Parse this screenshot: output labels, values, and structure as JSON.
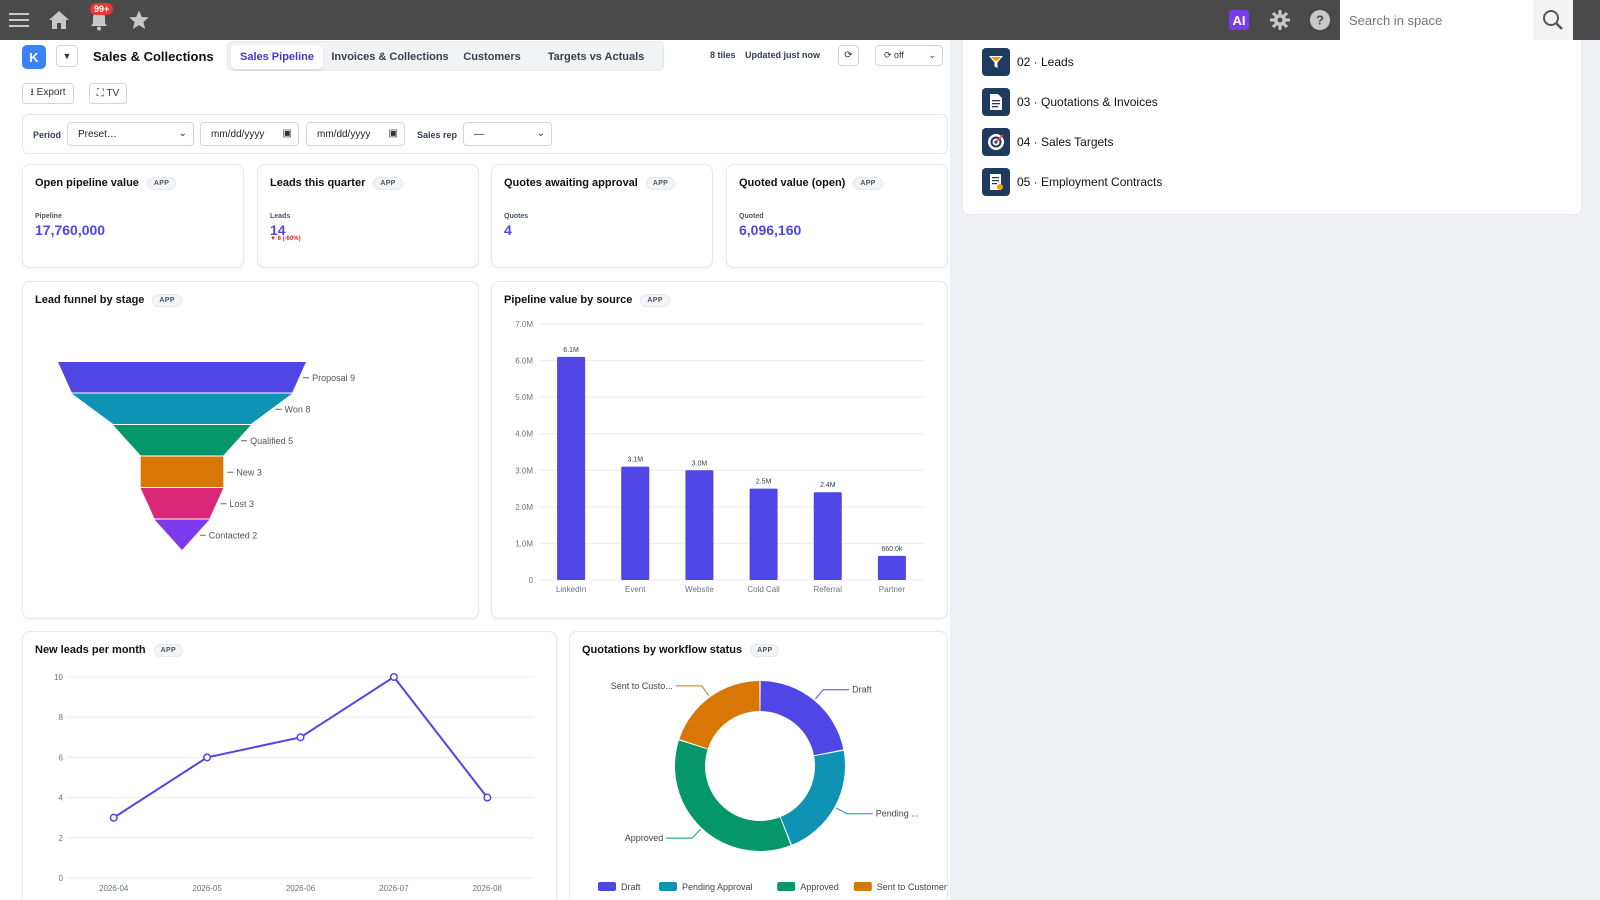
{
  "topbar": {
    "notification_count": "99+",
    "ai_label": "AI",
    "search_placeholder": "Search in space"
  },
  "dashboard": {
    "logo_letter": "K",
    "title": "Sales & Collections",
    "tabs": [
      {
        "label": "Sales Pipeline",
        "active": true
      },
      {
        "label": "Invoices & Collections",
        "active": false
      },
      {
        "label": "Customers",
        "active": false
      },
      {
        "label": "Targets vs Actuals",
        "active": false
      }
    ],
    "tiles_info": "8 tiles",
    "updated": "Updated just now",
    "refresh_glyph": "⟳",
    "auto_refresh": "⟳ off",
    "export_label": "⭳ Export",
    "tv_label": "⛶ TV"
  },
  "filters": {
    "period_label": "Period",
    "preset_value": "Preset…",
    "date_from": "mm/dd/yyyy",
    "date_to": "mm/dd/yyyy",
    "sales_rep_label": "Sales rep",
    "sales_rep_value": "—"
  },
  "app_tag": "APP",
  "kpis": [
    {
      "title": "Open pipeline value",
      "label": "Pipeline",
      "value": "17,760,000",
      "delta": ""
    },
    {
      "title": "Leads this quarter",
      "label": "Leads",
      "value": "14",
      "delta": "▼ 6 (-60%)"
    },
    {
      "title": "Quotes awaiting approval",
      "label": "Quotes",
      "value": "4",
      "delta": ""
    },
    {
      "title": "Quoted value (open)",
      "label": "Quoted",
      "value": "6,096,160",
      "delta": ""
    }
  ],
  "right_nav": [
    {
      "label": "02 · Leads",
      "icon": "funnel-icon"
    },
    {
      "label": "03 · Quotations & Invoices",
      "icon": "document-icon"
    },
    {
      "label": "04 · Sales Targets",
      "icon": "target-icon"
    },
    {
      "label": "05 · Employment Contracts",
      "icon": "contract-icon"
    }
  ],
  "colors": {
    "accent": "#4f46e5",
    "topbar": "#4a4a4a",
    "down": "#dc2626"
  },
  "chart_data": [
    {
      "type": "funnel",
      "title": "Lead funnel by stage",
      "categories": [
        "Proposal",
        "Won",
        "Qualified",
        "New",
        "Lost",
        "Contacted"
      ],
      "values": [
        9,
        8,
        5,
        3,
        3,
        2
      ],
      "colors": [
        "#4f46e5",
        "#0e93b5",
        "#059669",
        "#d97706",
        "#db2777",
        "#7c3aed"
      ]
    },
    {
      "type": "bar",
      "title": "Pipeline value by source",
      "categories": [
        "LinkedIn",
        "Event",
        "Website",
        "Cold Call",
        "Referral",
        "Partner"
      ],
      "values": [
        6100000,
        3100000,
        3000000,
        2500000,
        2400000,
        660000
      ],
      "value_labels": [
        "6.1M",
        "3.1M",
        "3.0M",
        "2.5M",
        "2.4M",
        "660.0k"
      ],
      "ylim": [
        0,
        7000000
      ],
      "yticks": [
        "0",
        "1.0M",
        "2.0M",
        "3.0M",
        "4.0M",
        "5.0M",
        "6.0M",
        "7.0M"
      ],
      "grid": true,
      "color": "#4f46e5"
    },
    {
      "type": "line",
      "title": "New leads per month",
      "x": [
        "2026-04",
        "2026-05",
        "2026-06",
        "2026-07",
        "2026-08"
      ],
      "values": [
        3,
        6,
        7,
        10,
        4
      ],
      "ylim": [
        0,
        10
      ],
      "yticks": [
        "0",
        "2",
        "4",
        "6",
        "8",
        "10"
      ],
      "grid": true,
      "color": "#4f46e5"
    },
    {
      "type": "pie",
      "title": "Quotations by workflow status",
      "categories": [
        "Draft",
        "Pending Approval",
        "Approved",
        "Sent to Customer"
      ],
      "slice_labels": [
        "Draft",
        "Pending ...",
        "Approved",
        "Sent to Custo..."
      ],
      "values": [
        22,
        22,
        36,
        20
      ],
      "colors": [
        "#4f46e5",
        "#0e93b5",
        "#059669",
        "#d97706"
      ],
      "legend": "bottom"
    }
  ]
}
